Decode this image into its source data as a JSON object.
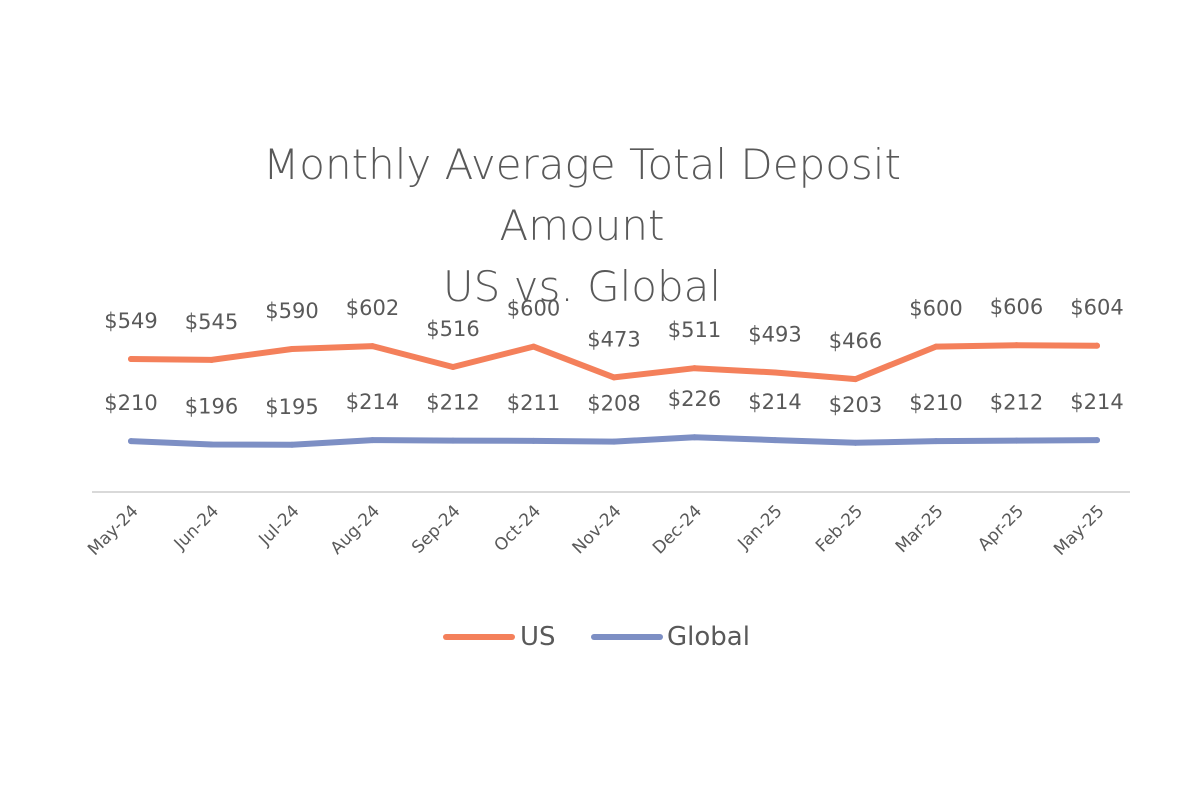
{
  "chart_data": {
    "type": "line",
    "title": [
      "Monthly Average Total Deposit",
      "Amount",
      "US vs. Global"
    ],
    "xlabel": "",
    "ylabel": "",
    "categories": [
      "May-24",
      "Jun-24",
      "Jul-24",
      "Aug-24",
      "Sep-24",
      "Oct-24",
      "Nov-24",
      "Dec-24",
      "Jan-25",
      "Feb-25",
      "Mar-25",
      "Apr-25",
      "May-25"
    ],
    "series": [
      {
        "name": "US",
        "color": "#f4805b",
        "values": [
          549,
          545,
          590,
          602,
          516,
          600,
          473,
          511,
          493,
          466,
          600,
          606,
          604
        ],
        "labels": [
          "$549",
          "$545",
          "$590",
          "$602",
          "$516",
          "$600",
          "$473",
          "$511",
          "$493",
          "$466",
          "$600",
          "$606",
          "$604"
        ]
      },
      {
        "name": "Global",
        "color": "#7d8fc4",
        "values": [
          210,
          196,
          195,
          214,
          212,
          211,
          208,
          226,
          214,
          203,
          210,
          212,
          214
        ],
        "labels": [
          "$210",
          "$196",
          "$195",
          "$214",
          "$212",
          "$211",
          "$208",
          "$226",
          "$214",
          "$203",
          "$210",
          "$212",
          "$214"
        ]
      }
    ],
    "grid": false,
    "y_axis_visible": false,
    "legend": "bottom"
  }
}
